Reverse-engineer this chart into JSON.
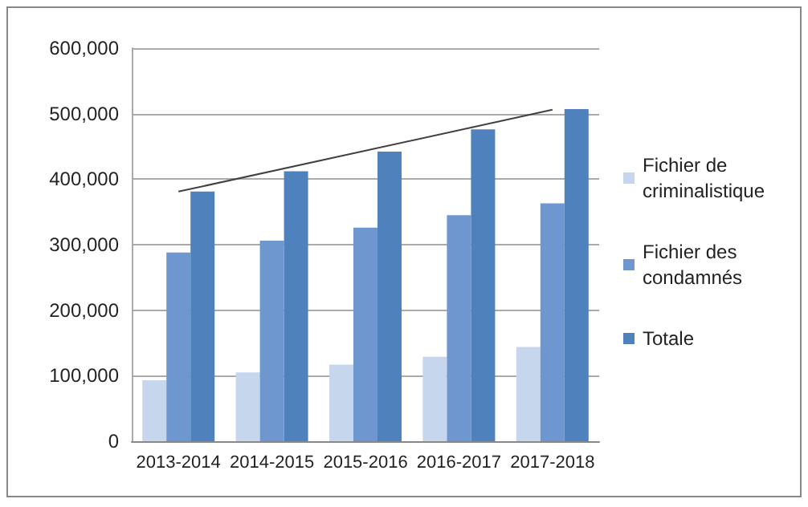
{
  "chart_data": {
    "type": "bar",
    "categories": [
      "2013-2014",
      "2014-2015",
      "2015-2016",
      "2016-2017",
      "2017-2018"
    ],
    "series": [
      {
        "name": "Fichier de criminalistique",
        "color": "#c6d6ec",
        "values": [
          93000,
          105000,
          117000,
          129000,
          144000
        ]
      },
      {
        "name": "Fichier des condamnés",
        "color": "#6f97cf",
        "values": [
          288000,
          306000,
          326000,
          345000,
          363000
        ]
      },
      {
        "name": "Totale",
        "color": "#4f81bd",
        "values": [
          381000,
          412000,
          442000,
          476000,
          507000
        ]
      },
      {
        "type": "line",
        "color": "#404040",
        "x": [
          "2013-2014",
          "2017-2018"
        ],
        "values": [
          381000,
          506000
        ]
      }
    ],
    "ylim": [
      0,
      600000
    ],
    "yticks": [
      0,
      {
        "value": 100000,
        "label": "100,000"
      },
      {
        "value": 200000,
        "label": "200,000"
      },
      {
        "value": 300000,
        "label": "300,000"
      },
      {
        "value": 400000,
        "label": "400,000"
      },
      {
        "value": 500000,
        "label": "500,000"
      },
      {
        "value": 600000,
        "label": "600,000"
      }
    ],
    "grid": "y",
    "legend": "right",
    "marker": "none"
  }
}
